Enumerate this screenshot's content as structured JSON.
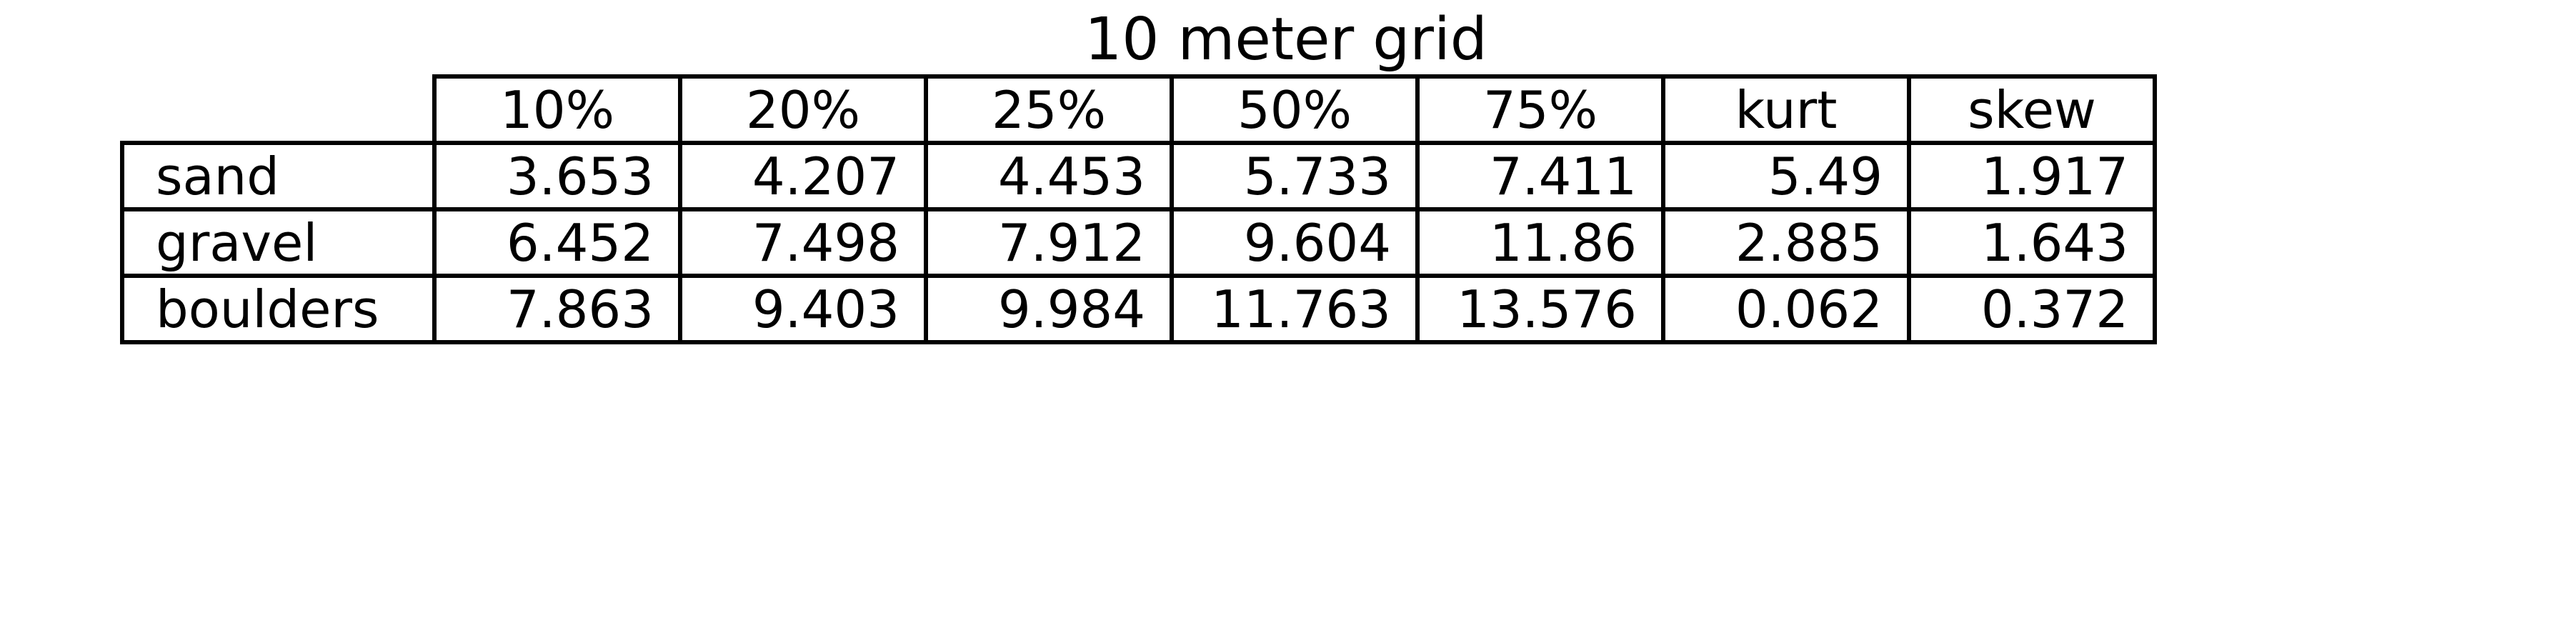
{
  "chart_data": {
    "type": "table",
    "title": "10 meter grid",
    "columns": [
      "10%",
      "20%",
      "25%",
      "50%",
      "75%",
      "kurt",
      "skew"
    ],
    "rows": [
      {
        "label": "sand",
        "values": [
          "3.653",
          "4.207",
          "4.453",
          "5.733",
          "7.411",
          "5.49",
          "1.917"
        ]
      },
      {
        "label": "gravel",
        "values": [
          "6.452",
          "7.498",
          "7.912",
          "9.604",
          "11.86",
          "2.885",
          "1.643"
        ]
      },
      {
        "label": "boulders",
        "values": [
          "7.863",
          "9.403",
          "9.984",
          "11.763",
          "13.576",
          "0.062",
          "0.372"
        ]
      }
    ]
  }
}
